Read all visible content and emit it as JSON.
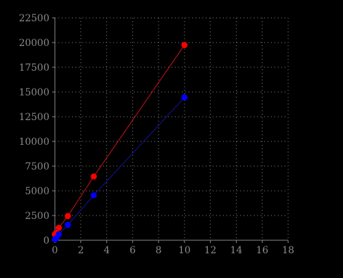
{
  "chart_data": {
    "type": "line",
    "title": "",
    "xlabel": "",
    "ylabel": "",
    "xlim": [
      0,
      18
    ],
    "ylim": [
      0,
      22500
    ],
    "x_ticks": [
      0,
      2,
      4,
      6,
      8,
      10,
      12,
      14,
      16,
      18
    ],
    "y_ticks": [
      0,
      2500,
      5000,
      7500,
      10000,
      12500,
      15000,
      17500,
      20000,
      22500
    ],
    "grid": true,
    "legend": "none",
    "series": [
      {
        "color": "#ff0000",
        "line_color": "#b01010",
        "x": [
          0,
          0.1,
          0.3,
          1,
          3,
          10
        ],
        "y": [
          600,
          750,
          1250,
          2450,
          6450,
          19750
        ]
      },
      {
        "color": "#0000ff",
        "line_color": "#10108c",
        "x": [
          0,
          0.1,
          0.3,
          1,
          3,
          10
        ],
        "y": [
          100,
          200,
          600,
          1550,
          4550,
          14450
        ]
      }
    ],
    "colors": {
      "background": "#000000",
      "axis": "#8c8c8c",
      "grid": "#8c8c8c"
    }
  }
}
